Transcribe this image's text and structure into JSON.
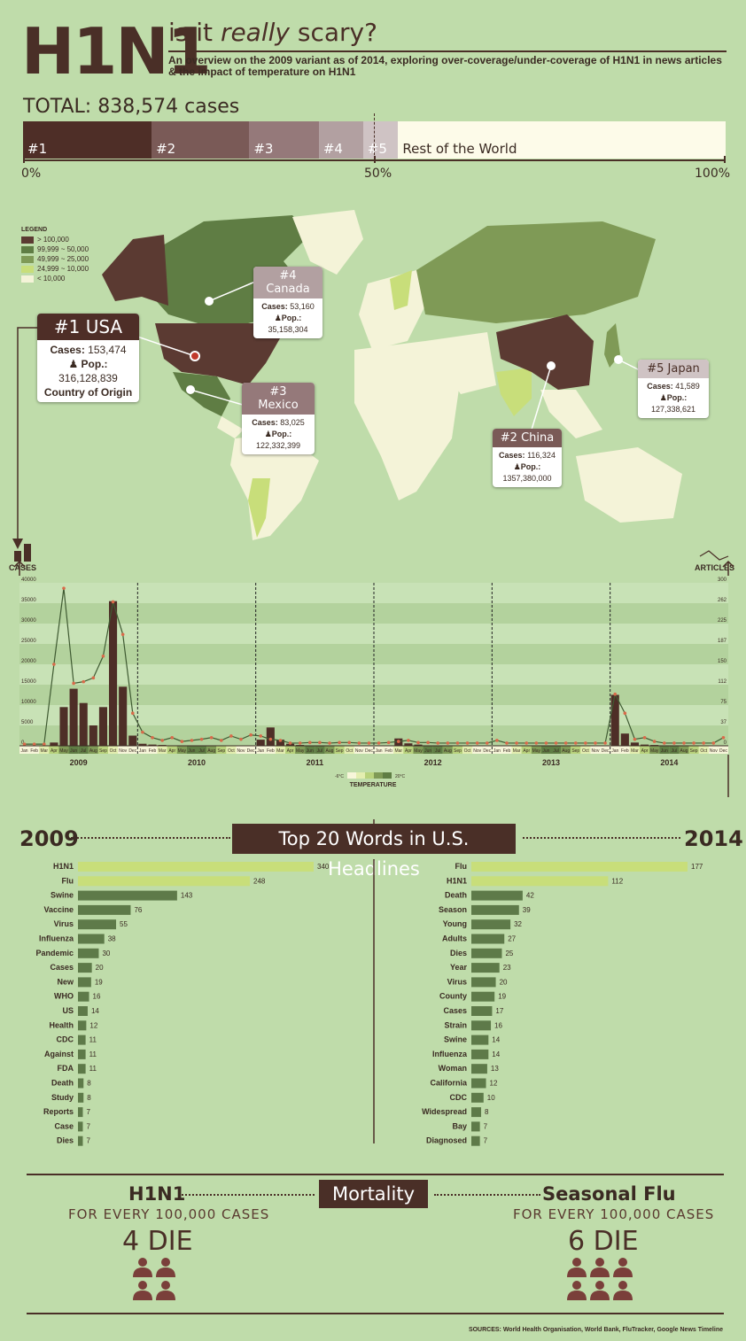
{
  "header": {
    "title": "H1N1",
    "subtitle_pre": "is it ",
    "subtitle_em": "really",
    "subtitle_post": " scary?",
    "description": "An overview on the 2009 variant as of 2014, exploring over-coverage/under-coverage of H1N1 in news articles & the impact of temperature on H1N1"
  },
  "total": {
    "label": "TOTAL: 838,574 cases",
    "segments": [
      {
        "label": "#1",
        "share": 18.3,
        "color": "#4e2e27"
      },
      {
        "label": "#2",
        "share": 13.9,
        "color": "#7a5a57"
      },
      {
        "label": "#3",
        "share": 9.9,
        "color": "#95797a"
      },
      {
        "label": "#4",
        "share": 6.3,
        "color": "#b2a0a1"
      },
      {
        "label": "#5",
        "share": 5.0,
        "color": "#cfc3c4"
      },
      {
        "label": "Rest of the World",
        "share": 46.6,
        "color": "#fdfbe9"
      }
    ],
    "axis_labels": [
      "0%",
      "50%",
      "100%"
    ]
  },
  "legend": {
    "title": "LEGEND",
    "items": [
      {
        "label": "> 100,000",
        "color": "#5b3a32"
      },
      {
        "label": "99,999 ~ 50,000",
        "color": "#5f7d44"
      },
      {
        "label": "49,999 ~ 25,000",
        "color": "#7f9a56"
      },
      {
        "label": "24,999 ~ 10,000",
        "color": "#c8de7a"
      },
      {
        "label": "< 10,000",
        "color": "#f4f3d8"
      }
    ]
  },
  "countries": [
    {
      "rank": "#1 USA",
      "cases_label": "Cases:",
      "cases": "153,474",
      "pop_label": "Pop.:",
      "pop": "316,128,839",
      "note": "Country of Origin"
    },
    {
      "rank": "#2 China",
      "cases_label": "Cases:",
      "cases": "116,324",
      "pop_label": "Pop.:",
      "pop": "1357,380,000"
    },
    {
      "rank": "#3 Mexico",
      "cases_label": "Cases:",
      "cases": "83,025",
      "pop_label": "Pop.:",
      "pop": "122,332,399"
    },
    {
      "rank": "#4 Canada",
      "cases_label": "Cases:",
      "cases": "53,160",
      "pop_label": "Pop.:",
      "pop": "35,158,304"
    },
    {
      "rank": "#5 Japan",
      "cases_label": "Cases:",
      "cases": "41,589",
      "pop_label": "Pop.:",
      "pop": "127,338,621"
    }
  ],
  "timeline": {
    "cases_label": "CASES",
    "articles_label": "ARTICLES",
    "left_ticks": [
      "0",
      "5000",
      "10000",
      "15000",
      "20000",
      "25000",
      "30000",
      "35000",
      "40000"
    ],
    "right_ticks": [
      "0",
      "37",
      "75",
      "112",
      "150",
      "187",
      "225",
      "262",
      "300"
    ],
    "months": [
      "Jan",
      "Feb",
      "Mar",
      "Apr",
      "May",
      "Jun",
      "Jul",
      "Aug",
      "Sep",
      "Oct",
      "Nov",
      "Dec"
    ],
    "years": [
      "2009",
      "2010",
      "2011",
      "2012",
      "2013",
      "2014"
    ],
    "temperature_label": "TEMPERATURE",
    "temp_min": "-6°C",
    "temp_max": "20°C"
  },
  "chart_data": {
    "type": "bar",
    "title": "",
    "x_unit": "month",
    "ylim": [
      0,
      40000
    ],
    "y2lim": [
      0,
      300
    ],
    "series": [
      {
        "name": "CASES",
        "type": "bar",
        "values": [
          0,
          0,
          0,
          800,
          9500,
          14000,
          10500,
          5000,
          9500,
          35500,
          14500,
          2500,
          500,
          300,
          200,
          100,
          100,
          100,
          100,
          100,
          100,
          100,
          100,
          100,
          1500,
          4500,
          1500,
          500,
          200,
          100,
          100,
          100,
          100,
          100,
          100,
          100,
          100,
          100,
          1800,
          600,
          300,
          100,
          100,
          100,
          100,
          100,
          100,
          100,
          100,
          100,
          100,
          100,
          100,
          100,
          100,
          100,
          100,
          100,
          100,
          100,
          12500,
          3000,
          800,
          300,
          200,
          100,
          100,
          100,
          100,
          100,
          100,
          100
        ]
      },
      {
        "name": "ARTICLES",
        "type": "line",
        "values": [
          3,
          3,
          3,
          150,
          290,
          115,
          118,
          125,
          165,
          265,
          205,
          60,
          25,
          15,
          10,
          15,
          8,
          10,
          12,
          15,
          10,
          18,
          12,
          20,
          18,
          12,
          10,
          5,
          5,
          6,
          6,
          5,
          6,
          6,
          5,
          5,
          5,
          6,
          8,
          10,
          6,
          6,
          5,
          5,
          5,
          5,
          5,
          5,
          10,
          5,
          5,
          5,
          5,
          5,
          5,
          5,
          5,
          5,
          5,
          5,
          95,
          60,
          12,
          15,
          8,
          5,
          5,
          5,
          5,
          5,
          5,
          15
        ]
      }
    ]
  },
  "words": {
    "title": "Top 20 Words in U.S. Headlines",
    "year_left": "2009",
    "year_right": "2014",
    "left": [
      {
        "word": "H1N1",
        "value": 340
      },
      {
        "word": "Flu",
        "value": 248
      },
      {
        "word": "Swine",
        "value": 143
      },
      {
        "word": "Vaccine",
        "value": 76
      },
      {
        "word": "Virus",
        "value": 55
      },
      {
        "word": "Influenza",
        "value": 38
      },
      {
        "word": "Pandemic",
        "value": 30
      },
      {
        "word": "Cases",
        "value": 20
      },
      {
        "word": "New",
        "value": 19
      },
      {
        "word": "WHO",
        "value": 16
      },
      {
        "word": "US",
        "value": 14
      },
      {
        "word": "Health",
        "value": 12
      },
      {
        "word": "CDC",
        "value": 11
      },
      {
        "word": "Against",
        "value": 11
      },
      {
        "word": "FDA",
        "value": 11
      },
      {
        "word": "Death",
        "value": 8
      },
      {
        "word": "Study",
        "value": 8
      },
      {
        "word": "Reports",
        "value": 7
      },
      {
        "word": "Case",
        "value": 7
      },
      {
        "word": "Dies",
        "value": 7
      }
    ],
    "right": [
      {
        "word": "Flu",
        "value": 177
      },
      {
        "word": "H1N1",
        "value": 112
      },
      {
        "word": "Death",
        "value": 42
      },
      {
        "word": "Season",
        "value": 39
      },
      {
        "word": "Young",
        "value": 32
      },
      {
        "word": "Adults",
        "value": 27
      },
      {
        "word": "Dies",
        "value": 25
      },
      {
        "word": "Year",
        "value": 23
      },
      {
        "word": "Virus",
        "value": 20
      },
      {
        "word": "County",
        "value": 19
      },
      {
        "word": "Cases",
        "value": 17
      },
      {
        "word": "Strain",
        "value": 16
      },
      {
        "word": "Swine",
        "value": 14
      },
      {
        "word": "Influenza",
        "value": 14
      },
      {
        "word": "Woman",
        "value": 13
      },
      {
        "word": "California",
        "value": 12
      },
      {
        "word": "CDC",
        "value": 10
      },
      {
        "word": "Widespread",
        "value": 8
      },
      {
        "word": "Bay",
        "value": 7
      },
      {
        "word": "Diagnosed",
        "value": 7
      }
    ],
    "highlight_color": "#c8de7a",
    "bar_color": "#5e7a49"
  },
  "mortality": {
    "title": "Mortality",
    "left_head": "H1N1",
    "left_sub": "FOR EVERY 100,000 CASES",
    "left_value": "4 DIE",
    "left_count": 4,
    "right_head": "Seasonal Flu",
    "right_sub": "FOR EVERY 100,000 CASES",
    "right_value": "6 DIE",
    "right_count": 6
  },
  "sources": "SOURCES:  World Health Organisation,  World Bank,  FluTracker,  Google News Timeline"
}
